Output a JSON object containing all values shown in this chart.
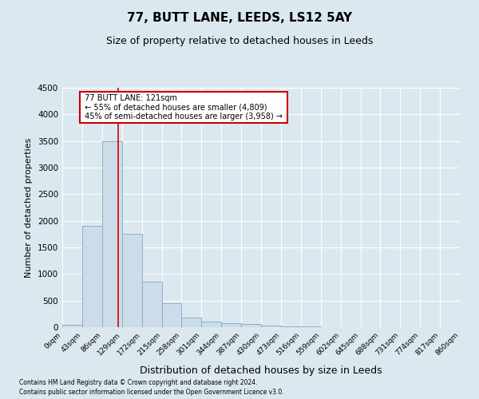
{
  "title": "77, BUTT LANE, LEEDS, LS12 5AY",
  "subtitle": "Size of property relative to detached houses in Leeds",
  "xlabel": "Distribution of detached houses by size in Leeds",
  "ylabel": "Number of detached properties",
  "property_label": "77 BUTT LANE: 121sqm",
  "annotation_line": "← 55% of detached houses are smaller (4,809)",
  "annotation_line2": "45% of semi-detached houses are larger (3,958) →",
  "bin_edges": [
    0,
    43,
    86,
    129,
    172,
    215,
    258,
    301,
    344,
    387,
    430,
    473,
    516,
    559,
    602,
    645,
    688,
    731,
    774,
    817,
    860
  ],
  "bar_heights": [
    50,
    1900,
    3500,
    1750,
    850,
    450,
    175,
    100,
    75,
    60,
    30,
    15,
    8,
    5,
    3,
    2,
    1,
    1,
    0,
    0
  ],
  "bar_color": "#ccdce8",
  "bar_edge_color": "#7aaac8",
  "vline_color": "#cc0000",
  "vline_x": 121,
  "annotation_box_facecolor": "#ffffff",
  "annotation_box_edgecolor": "#cc0000",
  "ylim": [
    0,
    4500
  ],
  "yticks": [
    0,
    500,
    1000,
    1500,
    2000,
    2500,
    3000,
    3500,
    4000,
    4500
  ],
  "footnote1": "Contains HM Land Registry data © Crown copyright and database right 2024.",
  "footnote2": "Contains public sector information licensed under the Open Government Licence v3.0.",
  "background_color": "#dce8f0",
  "plot_background_color": "#dce8f0",
  "grid_color": "#ffffff",
  "title_fontsize": 11,
  "subtitle_fontsize": 9,
  "ylabel_fontsize": 8,
  "xlabel_fontsize": 9
}
